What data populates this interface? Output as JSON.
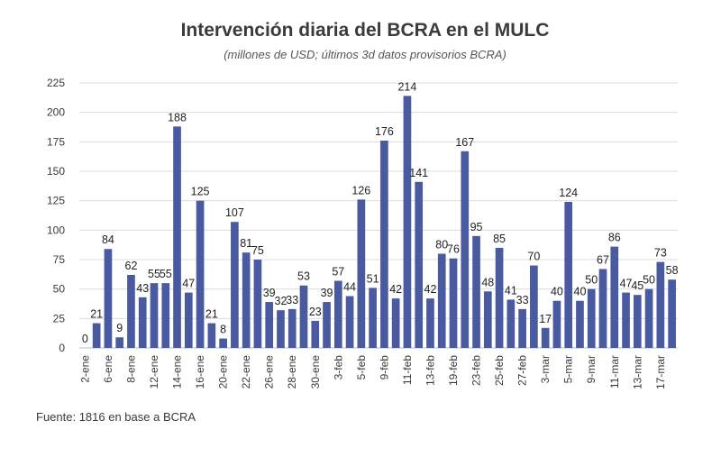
{
  "chart_data": {
    "type": "bar",
    "title": "Intervención diaria del BCRA en el MULC",
    "subtitle": "(millones de USD; últimos 3d datos provisorios BCRA)",
    "source": "Fuente: 1816 en base a BCRA",
    "xlabel": "",
    "ylabel": "",
    "ylim": [
      0,
      225
    ],
    "yticks": [
      0,
      25,
      50,
      75,
      100,
      125,
      150,
      175,
      200,
      225
    ],
    "grid": true,
    "bar_color": "#4a5aa0",
    "xtick_labels": [
      "2-ene",
      "6-ene",
      "8-ene",
      "12-ene",
      "14-ene",
      "16-ene",
      "20-ene",
      "22-ene",
      "26-ene",
      "28-ene",
      "30-ene",
      "3-feb",
      "5-feb",
      "9-feb",
      "11-feb",
      "13-feb",
      "19-feb",
      "23-feb",
      "25-feb",
      "27-feb",
      "3-mar",
      "5-mar",
      "9-mar",
      "11-mar",
      "13-mar",
      "17-mar"
    ],
    "values": [
      0,
      21,
      84,
      9,
      62,
      43,
      55,
      55,
      188,
      47,
      125,
      21,
      8,
      107,
      81,
      75,
      39,
      32,
      33,
      53,
      23,
      39,
      57,
      44,
      126,
      51,
      176,
      42,
      214,
      141,
      42,
      80,
      76,
      167,
      95,
      48,
      85,
      41,
      33,
      70,
      17,
      40,
      124,
      40,
      50,
      67,
      86,
      47,
      45,
      50,
      73,
      58
    ],
    "value_labels": [
      "0",
      "21",
      "84",
      "9",
      "62",
      "43",
      "55",
      "55",
      "188",
      "47",
      "125",
      "21",
      "8",
      "107",
      "81",
      "75",
      "39",
      "32",
      "33",
      "53",
      "23",
      "39",
      "57",
      "44",
      "126",
      "51",
      "176",
      "42",
      "214",
      "141",
      "42",
      "80",
      "76",
      "167",
      "95",
      "48",
      "85",
      "41",
      "33",
      "70",
      "17",
      "40",
      "124",
      "40",
      "50",
      "67",
      "86",
      "47",
      "45",
      "50",
      "73",
      "58"
    ]
  }
}
